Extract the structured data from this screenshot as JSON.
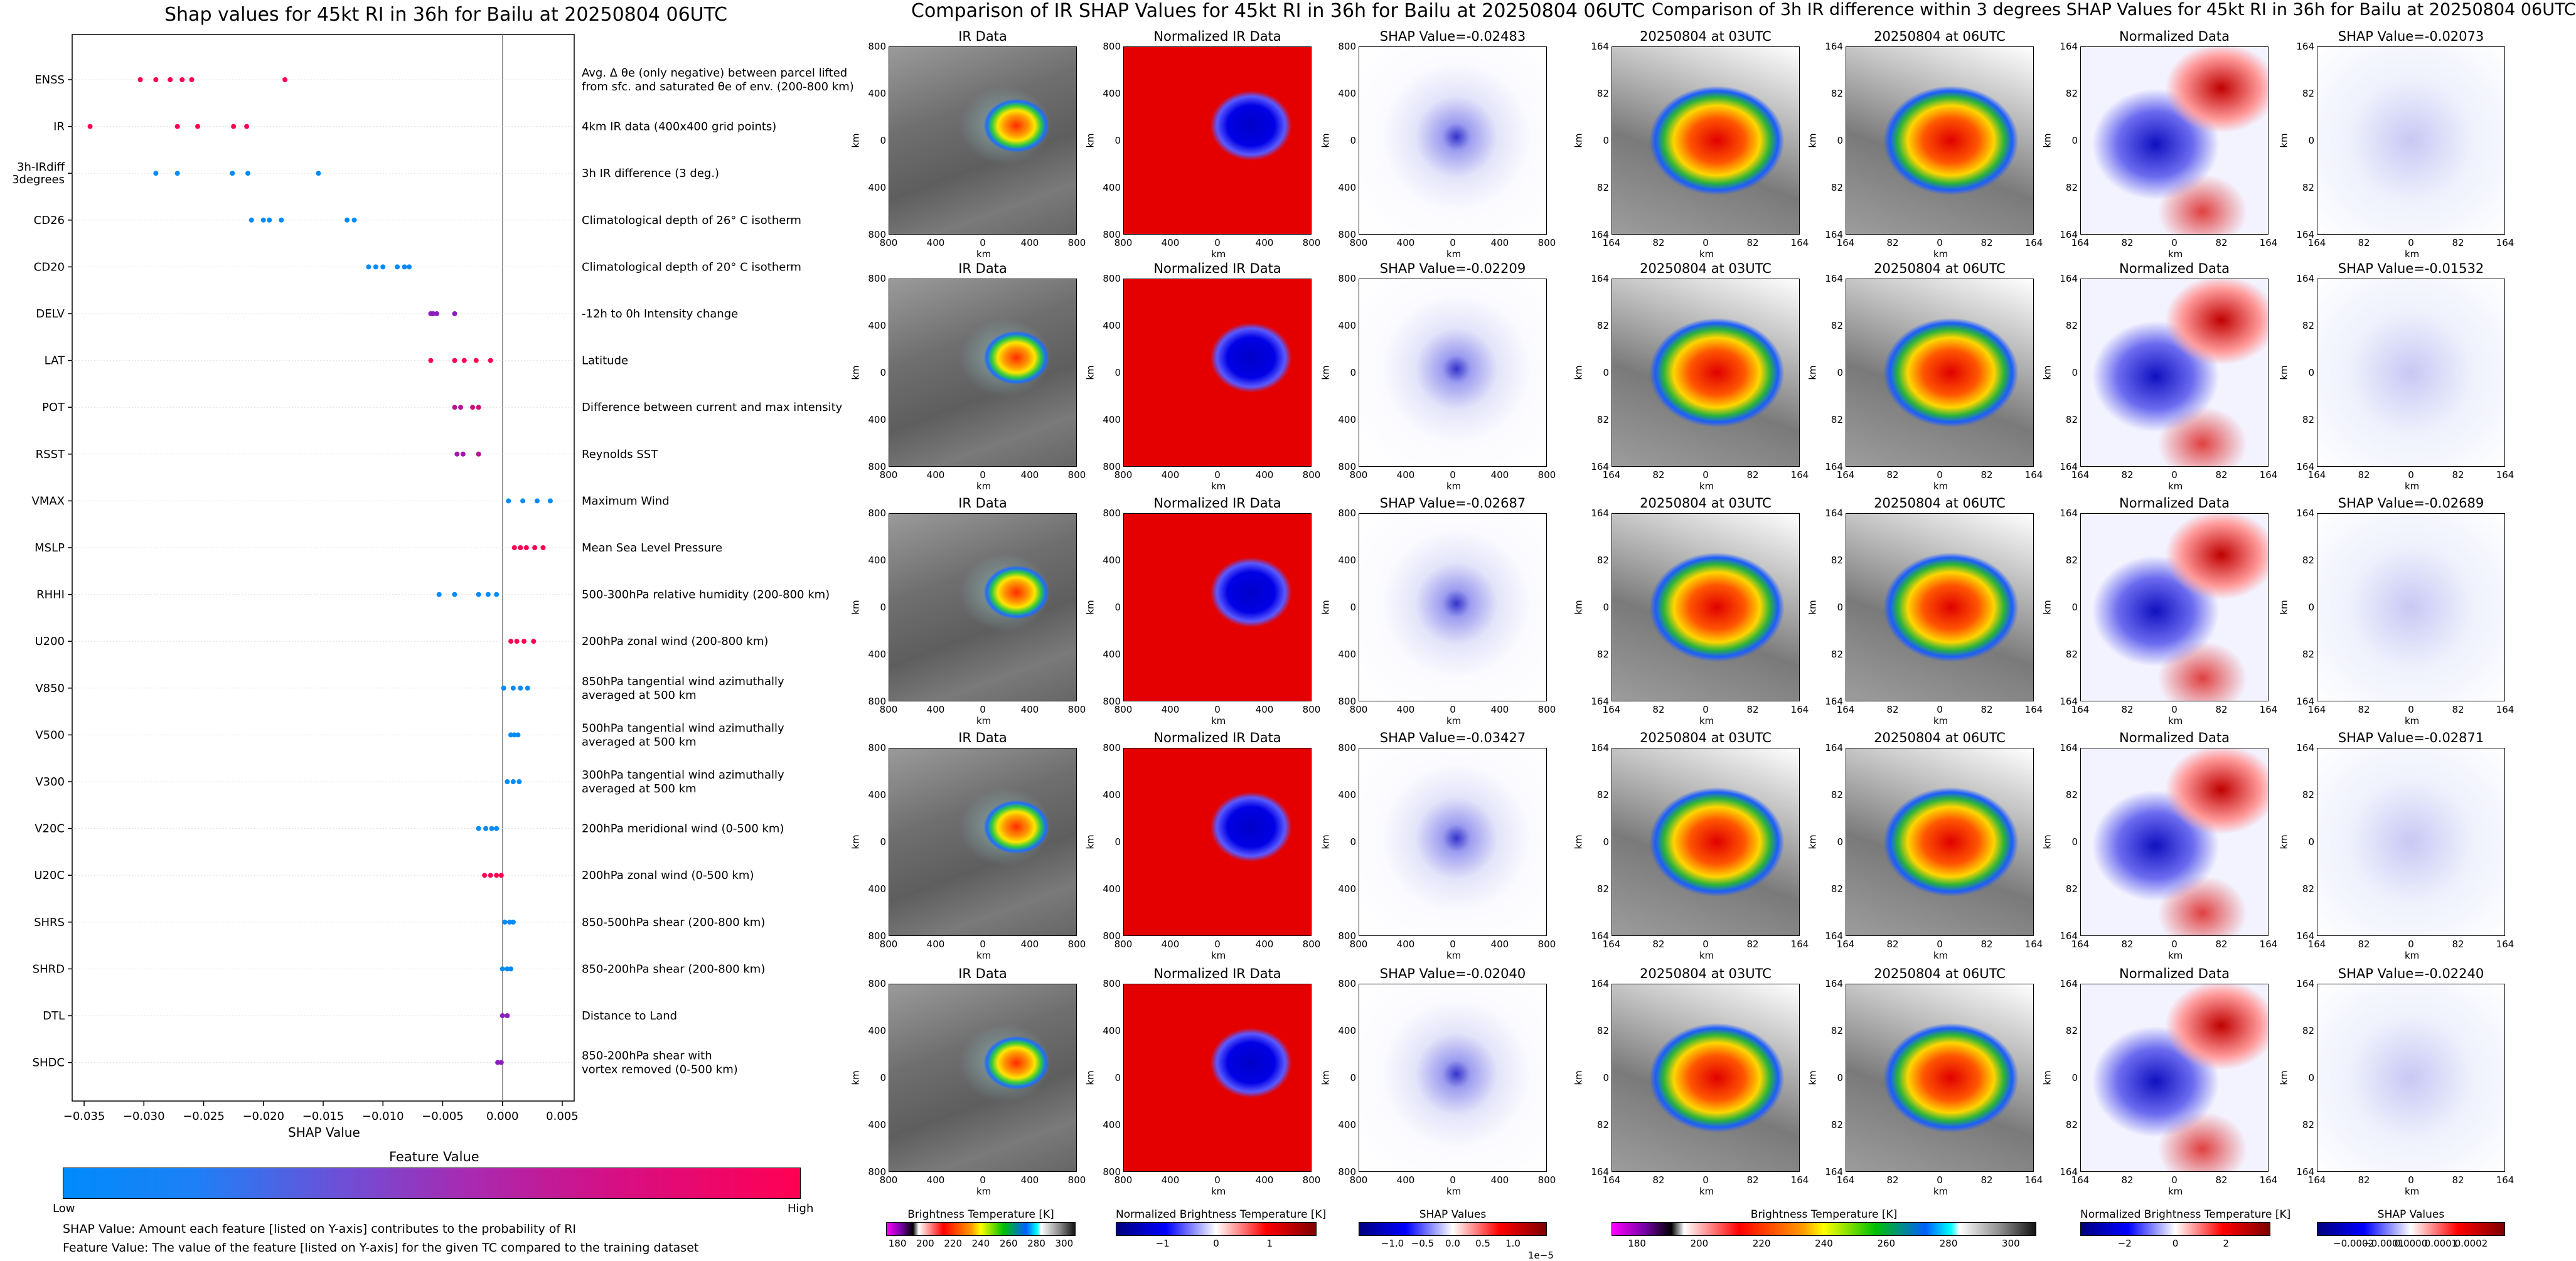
{
  "left_chart": {
    "title": "Shap values for 45kt RI in 36h for Bailu at 20250804 06UTC",
    "xlabel": "SHAP Value",
    "colorbar_title": "Feature Value",
    "colorbar_low": "Low",
    "colorbar_high": "High",
    "note1": "SHAP Value: Amount each feature [listed on Y-axis] contributes to the probability of RI",
    "note2": "Feature Value: The value of the feature [listed on Y-axis] for the given TC compared to the training dataset",
    "x_ticks": [
      "-0.035",
      "-0.030",
      "-0.025",
      "-0.020",
      "-0.015",
      "-0.010",
      "-0.005",
      "0.000",
      "0.005"
    ],
    "features": [
      {
        "label": "ENSS",
        "desc": "Avg. Δ θe (only negative) between parcel lifted\nfrom sfc. and saturated θe of env. (200-800 km)"
      },
      {
        "label": "IR",
        "desc": "4km IR data (400x400 grid points)"
      },
      {
        "label": "3h-IRdiff\n3degrees",
        "desc": "3h IR difference (3 deg.)"
      },
      {
        "label": "CD26",
        "desc": "Climatological depth of 26° C isotherm"
      },
      {
        "label": "CD20",
        "desc": "Climatological depth of 20° C isotherm"
      },
      {
        "label": "DELV",
        "desc": "-12h to 0h Intensity change"
      },
      {
        "label": "LAT",
        "desc": "Latitude"
      },
      {
        "label": "POT",
        "desc": "Difference between current and max intensity"
      },
      {
        "label": "RSST",
        "desc": "Reynolds SST"
      },
      {
        "label": "VMAX",
        "desc": "Maximum Wind"
      },
      {
        "label": "MSLP",
        "desc": "Mean Sea Level Pressure"
      },
      {
        "label": "RHHI",
        "desc": "500-300hPa relative humidity (200-800 km)"
      },
      {
        "label": "U200",
        "desc": "200hPa zonal wind (200-800 km)"
      },
      {
        "label": "V850",
        "desc": "850hPa tangential wind azimuthally\naveraged at 500 km"
      },
      {
        "label": "V500",
        "desc": "500hPa tangential wind azimuthally\naveraged at 500 km"
      },
      {
        "label": "V300",
        "desc": "300hPa tangential wind azimuthally\naveraged at 500 km"
      },
      {
        "label": "V20C",
        "desc": "200hPa meridional wind (0-500 km)"
      },
      {
        "label": "U20C",
        "desc": "200hPa zonal wind (0-500 km)"
      },
      {
        "label": "SHRS",
        "desc": "850-500hPa shear (200-800 km)"
      },
      {
        "label": "SHRD",
        "desc": "850-200hPa shear (200-800 km)"
      },
      {
        "label": "DTL",
        "desc": "Distance to Land"
      },
      {
        "label": "SHDC",
        "desc": "850-200hPa shear with\nvortex removed (0-500 km)"
      }
    ]
  },
  "chart_data": {
    "type": "scatter",
    "title": "Shap values for 45kt RI in 36h for Bailu at 20250804 06UTC",
    "xlabel": "SHAP Value",
    "xlim": [
      -0.036,
      0.006
    ],
    "colors": {
      "low": "#008bfb",
      "mid": "#8a1fbf",
      "high": "#ff0052"
    },
    "series": [
      {
        "name": "ENSS",
        "points": [
          [
            -0.0303,
            1
          ],
          [
            -0.029,
            1
          ],
          [
            -0.0278,
            1
          ],
          [
            -0.0268,
            1
          ],
          [
            -0.026,
            1
          ],
          [
            -0.0182,
            1
          ]
        ]
      },
      {
        "name": "IR",
        "points": [
          [
            -0.0345,
            1
          ],
          [
            -0.0272,
            1
          ],
          [
            -0.0255,
            1
          ],
          [
            -0.0225,
            1
          ],
          [
            -0.0214,
            1
          ]
        ]
      },
      {
        "name": "3h-IRdiff\n3degrees",
        "points": [
          [
            -0.029,
            0
          ],
          [
            -0.0272,
            0
          ],
          [
            -0.0226,
            0
          ],
          [
            -0.0213,
            0
          ],
          [
            -0.0154,
            0
          ]
        ]
      },
      {
        "name": "CD26",
        "points": [
          [
            -0.021,
            0
          ],
          [
            -0.02,
            0
          ],
          [
            -0.0195,
            0
          ],
          [
            -0.0185,
            0
          ],
          [
            -0.013,
            0
          ],
          [
            -0.0124,
            0
          ]
        ]
      },
      {
        "name": "CD20",
        "points": [
          [
            -0.0112,
            0
          ],
          [
            -0.0106,
            0
          ],
          [
            -0.01,
            0
          ],
          [
            -0.0088,
            0
          ],
          [
            -0.0082,
            0
          ],
          [
            -0.0078,
            0
          ]
        ]
      },
      {
        "name": "DELV",
        "points": [
          [
            -0.006,
            0.5
          ],
          [
            -0.0058,
            0.5
          ],
          [
            -0.0055,
            0.5
          ],
          [
            -0.004,
            0.5
          ]
        ]
      },
      {
        "name": "LAT",
        "points": [
          [
            -0.006,
            1
          ],
          [
            -0.004,
            1
          ],
          [
            -0.0032,
            1
          ],
          [
            -0.0022,
            1
          ],
          [
            -0.001,
            1
          ]
        ]
      },
      {
        "name": "POT",
        "points": [
          [
            -0.004,
            0.7
          ],
          [
            -0.0035,
            0.7
          ],
          [
            -0.0025,
            0.8
          ],
          [
            -0.002,
            0.8
          ]
        ]
      },
      {
        "name": "RSST",
        "points": [
          [
            -0.0038,
            0.6
          ],
          [
            -0.0033,
            0.6
          ],
          [
            -0.002,
            0.7
          ]
        ]
      },
      {
        "name": "VMAX",
        "points": [
          [
            0.0005,
            0
          ],
          [
            0.0017,
            0
          ],
          [
            0.0029,
            0
          ],
          [
            0.004,
            0
          ]
        ]
      },
      {
        "name": "MSLP",
        "points": [
          [
            0.001,
            1
          ],
          [
            0.0015,
            1
          ],
          [
            0.002,
            1
          ],
          [
            0.0027,
            1
          ],
          [
            0.0034,
            1
          ]
        ]
      },
      {
        "name": "RHHI",
        "points": [
          [
            -0.0053,
            0
          ],
          [
            -0.004,
            0
          ],
          [
            -0.002,
            0
          ],
          [
            -0.0012,
            0
          ],
          [
            -0.0005,
            0
          ]
        ]
      },
      {
        "name": "U200",
        "points": [
          [
            0.0007,
            1
          ],
          [
            0.0012,
            1
          ],
          [
            0.0018,
            1
          ],
          [
            0.0026,
            1
          ]
        ]
      },
      {
        "name": "V850",
        "points": [
          [
            0.0001,
            0
          ],
          [
            0.0009,
            0
          ],
          [
            0.0015,
            0
          ],
          [
            0.0021,
            0
          ]
        ]
      },
      {
        "name": "V500",
        "points": [
          [
            0.0007,
            0
          ],
          [
            0.001,
            0
          ],
          [
            0.0013,
            0
          ]
        ]
      },
      {
        "name": "V300",
        "points": [
          [
            0.0004,
            0
          ],
          [
            0.0009,
            0
          ],
          [
            0.0014,
            0
          ]
        ]
      },
      {
        "name": "V20C",
        "points": [
          [
            -0.002,
            0
          ],
          [
            -0.0014,
            0
          ],
          [
            -0.0009,
            0
          ],
          [
            -0.0005,
            0
          ]
        ]
      },
      {
        "name": "U20C",
        "points": [
          [
            -0.0015,
            1
          ],
          [
            -0.001,
            1
          ],
          [
            -0.0005,
            1
          ],
          [
            -0.0001,
            1
          ]
        ]
      },
      {
        "name": "SHRS",
        "points": [
          [
            0.0002,
            0
          ],
          [
            0.0006,
            0
          ],
          [
            0.0009,
            0
          ]
        ]
      },
      {
        "name": "SHRD",
        "points": [
          [
            0.0,
            0
          ],
          [
            0.0004,
            0
          ],
          [
            0.0007,
            0
          ]
        ]
      },
      {
        "name": "DTL",
        "points": [
          [
            0.0,
            0.5
          ],
          [
            0.0004,
            0.5
          ]
        ]
      },
      {
        "name": "SHDC",
        "points": [
          [
            -0.0004,
            0.5
          ],
          [
            -0.0001,
            0.5
          ]
        ]
      }
    ]
  },
  "middle": {
    "title": "Comparison of IR SHAP Values for 45kt RI in 36h for Bailu at 20250804 06UTC",
    "col_titles": [
      "IR Data",
      "Normalized IR Data"
    ],
    "shap_values": [
      "SHAP Value=-0.02483",
      "SHAP Value=-0.02209",
      "SHAP Value=-0.02687",
      "SHAP Value=-0.03427",
      "SHAP Value=-0.02040"
    ],
    "ticks": [
      "800",
      "400",
      "0",
      "400",
      "800"
    ],
    "axis_label": "km",
    "cbars": [
      {
        "label": "Brightness Temperature [K]",
        "ticks": [
          "180",
          "200",
          "220",
          "240",
          "260",
          "280",
          "300"
        ]
      },
      {
        "label": "Normalized Brightness Temperature [K]",
        "ticks": [
          "−1",
          "0",
          "1"
        ]
      },
      {
        "label": "SHAP Values",
        "ticks": [
          "−1.0",
          "−0.5",
          "0.0",
          "0.5",
          "1.0"
        ],
        "exponent": "1e−5"
      }
    ]
  },
  "right": {
    "title": "Comparison of 3h IR difference within 3 degrees SHAP Values for 45kt RI in 36h for Bailu at 20250804 06UTC",
    "col_titles": [
      "20250804 at 03UTC",
      "20250804 at 06UTC",
      "Normalized Data"
    ],
    "shap_values": [
      "SHAP Value=-0.02073",
      "SHAP Value=-0.01532",
      "SHAP Value=-0.02689",
      "SHAP Value=-0.02871",
      "SHAP Value=-0.02240"
    ],
    "ticks": [
      "164",
      "82",
      "0",
      "82",
      "164"
    ],
    "axis_label": "km",
    "cbars": [
      {
        "label": "Brightness Temperature [K]",
        "ticks": [
          "180",
          "200",
          "220",
          "240",
          "260",
          "280",
          "300"
        ]
      },
      {
        "label": "Normalized Brightness Temperature [K]",
        "ticks": [
          "−2",
          "0",
          "2"
        ]
      },
      {
        "label": "SHAP Values",
        "ticks": [
          "−0.0002",
          "−0.0001",
          "0.0000",
          "0.0001",
          "0.0002"
        ]
      }
    ]
  }
}
